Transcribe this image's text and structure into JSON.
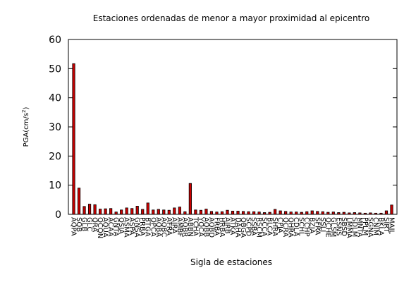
{
  "chart_data": {
    "type": "bar",
    "title": "Estaciones ordenadas de menor a mayor proximidad al epicentro",
    "xlabel": "Sigla de estaciones",
    "ylabel": "PGA(cm/s",
    "ylabel_sup": "2",
    "ylabel_close": ")",
    "ylim": [
      0,
      60
    ],
    "yticks": [
      0,
      10,
      20,
      30,
      40,
      50,
      60
    ],
    "bar_color": "#cc0000",
    "grid": false,
    "categories": [
      "AQPA",
      "SQB",
      "GLB",
      "GLC",
      "QRA",
      "QCQN",
      "AQUA",
      "ACAA",
      "GNTA",
      "QSJA",
      "ASMA",
      "ASPA",
      "GNSA",
      "PRBA",
      "BTGA",
      "QPCA",
      "AQBA",
      "AQBC",
      "AFRA",
      "AJRA",
      "AMBF",
      "AQBR",
      "ABBN",
      "TCHA",
      "YQCA",
      "AQBB",
      "AQBD",
      "FRBA",
      "HRBA",
      "AJRB",
      "ATKA",
      "DAHA",
      "QBGA",
      "SCPD",
      "SSBA",
      "RSCM",
      "SCCA",
      "BLCA",
      "SHRA",
      "CPJA",
      "QCRA",
      "QHRA",
      "CDLA",
      "SCHL",
      "CCHP",
      "BZJA",
      "SFRA",
      "SSLJ",
      "QCHE",
      "GLSM",
      "ESNS",
      "SBSD",
      "LMMA",
      "SDLM",
      "MNTA",
      "PPLM",
      "SGNA",
      "CNIM",
      "BKLA",
      "SIRT",
      "MAJL"
    ],
    "values": [
      51.7,
      9.0,
      2.7,
      3.5,
      3.3,
      1.8,
      1.9,
      2.0,
      0.8,
      1.5,
      2.2,
      2.0,
      2.8,
      1.7,
      3.9,
      1.5,
      1.7,
      1.5,
      1.4,
      2.2,
      2.5,
      0.9,
      10.6,
      1.5,
      1.4,
      1.8,
      1.0,
      0.8,
      0.9,
      1.4,
      1.1,
      1.1,
      1.0,
      0.9,
      0.9,
      0.8,
      0.6,
      0.7,
      1.7,
      1.2,
      1.0,
      0.8,
      0.8,
      0.7,
      0.9,
      1.2,
      1.0,
      0.9,
      0.7,
      0.8,
      0.6,
      0.7,
      0.5,
      0.6,
      0.5,
      0.4,
      0.5,
      0.4,
      0.4,
      1.2,
      3.2
    ]
  }
}
